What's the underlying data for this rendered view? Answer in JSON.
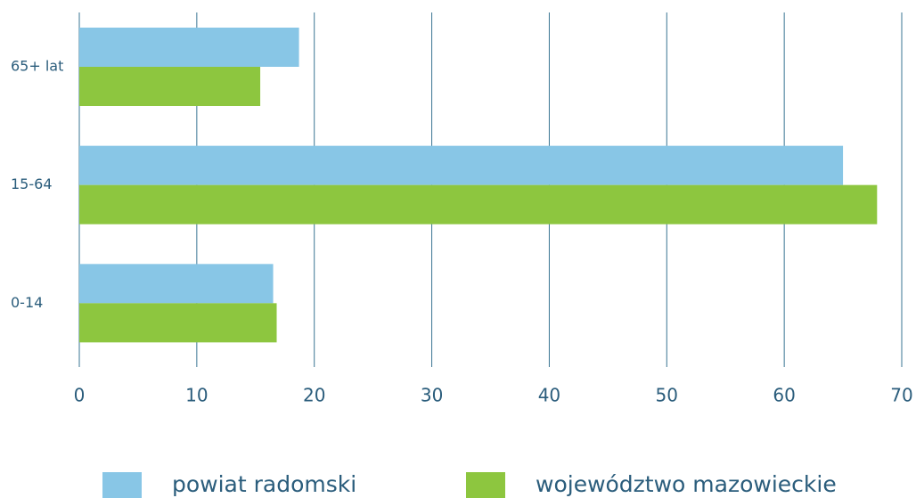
{
  "chart_data": {
    "type": "bar",
    "orientation": "horizontal",
    "categories": [
      "65+ lat",
      "15-64",
      "0-14"
    ],
    "series": [
      {
        "name": "powiat radomski",
        "color": "#88c6e6",
        "values": [
          18.7,
          65.0,
          16.5
        ]
      },
      {
        "name": "województwo mazowieckie",
        "color": "#8dc63f",
        "values": [
          15.4,
          67.9,
          16.8
        ]
      }
    ],
    "xlim": [
      0,
      70
    ],
    "xticks": [
      0,
      10,
      20,
      30,
      40,
      50,
      60,
      70
    ],
    "grid": true
  }
}
